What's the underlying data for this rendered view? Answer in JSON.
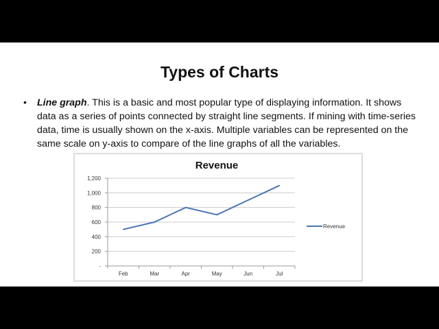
{
  "slide": {
    "title": "Types of Charts",
    "bullet_term": "Line graph",
    "bullet_text": ". This is a basic and most popular type of displaying information. It shows data as a series of points connected by straight line segments. If mining with time-series data, time is usually shown on the x-axis. Multiple variables can be represented on the same scale on y-axis to compare of the line graphs of all the variables."
  },
  "chart_data": {
    "type": "line",
    "title": "Revenue",
    "categories": [
      "Feb",
      "Mar",
      "Apr",
      "May",
      "Jun",
      "Jul"
    ],
    "series": [
      {
        "name": "Revenue",
        "values": [
          500,
          600,
          800,
          700,
          900,
          1100
        ],
        "color": "#4a74b4"
      }
    ],
    "yticks": [
      "-",
      "200",
      "400",
      "600",
      "800",
      "1,000",
      "1,200"
    ],
    "ylim": [
      0,
      1200
    ],
    "grid": true,
    "legend": "right"
  }
}
